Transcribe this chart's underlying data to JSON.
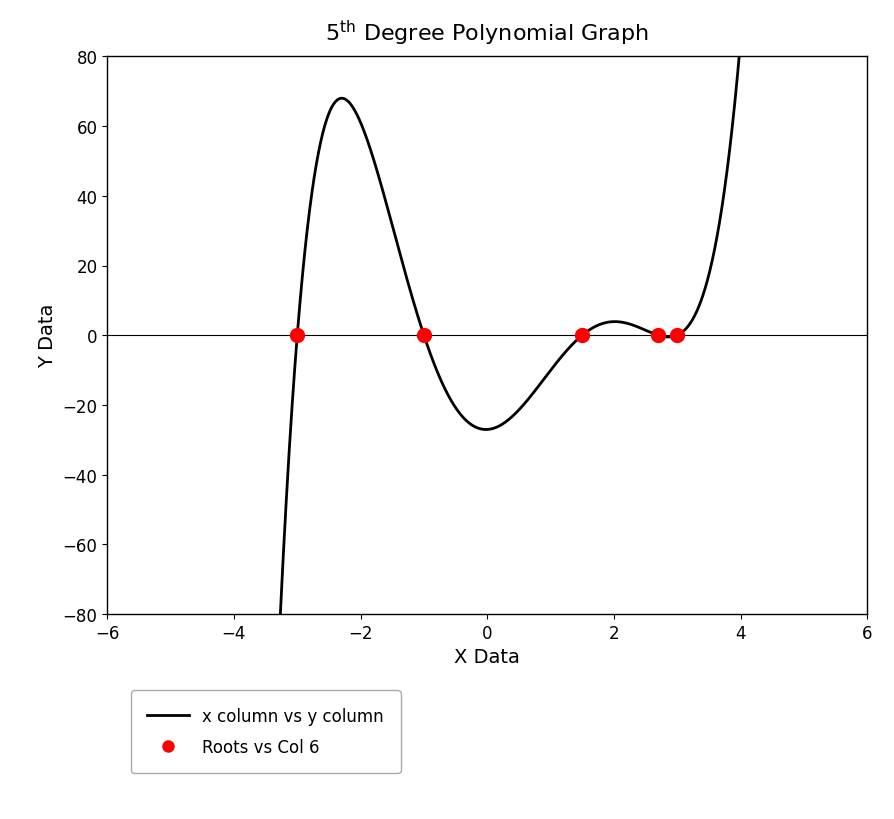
{
  "title_main": "5",
  "title_super": "th",
  "title_rest": " Degree Polynomial Graph",
  "xlabel": "X Data",
  "ylabel": "Y Data",
  "xlim": [
    -6,
    6
  ],
  "ylim": [
    -80,
    80
  ],
  "xticks": [
    -6,
    -4,
    -2,
    0,
    2,
    4,
    6
  ],
  "yticks": [
    -80,
    -60,
    -40,
    -20,
    0,
    20,
    40,
    60,
    80
  ],
  "roots": [
    -3.0,
    -1.0,
    1.5,
    2.7,
    3.0
  ],
  "scale": 0.5,
  "line_color": "#000000",
  "root_color": "#ff0000",
  "background_color": "#ffffff",
  "legend_line_label": "x column vs y column",
  "legend_root_label": "Roots vs Col 6",
  "line_width": 2.0,
  "root_marker_size": 10,
  "title_fontsize": 16,
  "axis_label_fontsize": 14,
  "tick_fontsize": 12,
  "legend_fontsize": 12
}
